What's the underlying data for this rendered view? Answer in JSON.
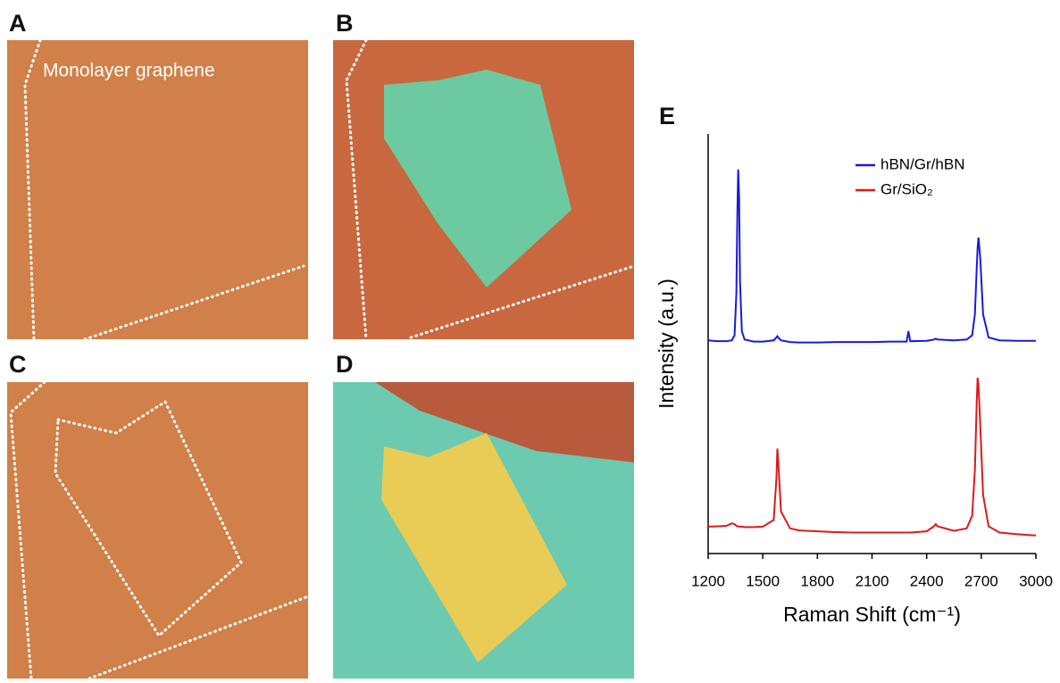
{
  "panels": [
    {
      "label": "A",
      "caption": "Monolayer graphene"
    },
    {
      "label": "B"
    },
    {
      "label": "C"
    },
    {
      "label": "D"
    }
  ],
  "chart_data": {
    "type": "line",
    "panel_label": "E",
    "x_label": "Raman Shift (cm⁻¹)",
    "y_label": "Intensity (a.u.)",
    "x": [
      1200,
      1250,
      1300,
      1330,
      1345,
      1355,
      1360,
      1365,
      1370,
      1375,
      1385,
      1400,
      1450,
      1500,
      1560,
      1575,
      1580,
      1585,
      1600,
      1650,
      1700,
      1800,
      1900,
      2000,
      2100,
      2200,
      2290,
      2300,
      2310,
      2400,
      2440,
      2450,
      2460,
      2550,
      2620,
      2650,
      2665,
      2675,
      2680,
      2685,
      2695,
      2710,
      2740,
      2800,
      2900,
      3000
    ],
    "series": [
      {
        "name": "hBN/Gr/hBN",
        "color": "#1a1adc",
        "values": [
          50.8,
          50.6,
          50.6,
          50.8,
          52,
          62,
          80,
          91.5,
          85,
          65,
          53,
          51,
          50.5,
          50.5,
          50.8,
          51.5,
          51.8,
          51.5,
          50.8,
          50.4,
          50.3,
          50.3,
          50.4,
          50.4,
          50.4,
          50.5,
          50.5,
          53,
          50.6,
          50.7,
          51,
          51.2,
          51,
          50.8,
          51,
          52,
          57,
          68,
          73,
          75.3,
          70,
          57,
          51.5,
          50.8,
          50.7,
          50.7
        ]
      },
      {
        "name": "Gr/SiO₂",
        "color": "#dc1a1a",
        "values": [
          6.4,
          6.5,
          6.6,
          7.2,
          7,
          6.6,
          6.5,
          6.5,
          6.4,
          6.4,
          6.4,
          6.3,
          6.3,
          6.4,
          8,
          18,
          25,
          22,
          10,
          6,
          5.5,
          5.3,
          5.1,
          5,
          5,
          5,
          5,
          5,
          5,
          5.3,
          6.5,
          7,
          6.5,
          5.4,
          6,
          9,
          20,
          36,
          41.9,
          40,
          30,
          14,
          6.5,
          5,
          4.6,
          4.3
        ]
      }
    ],
    "xlim": [
      1200,
      3000
    ],
    "xticks": [
      1200,
      1500,
      1800,
      2100,
      2400,
      2700,
      3000
    ],
    "ylim": [
      0,
      100
    ],
    "legend": "upper-right"
  }
}
